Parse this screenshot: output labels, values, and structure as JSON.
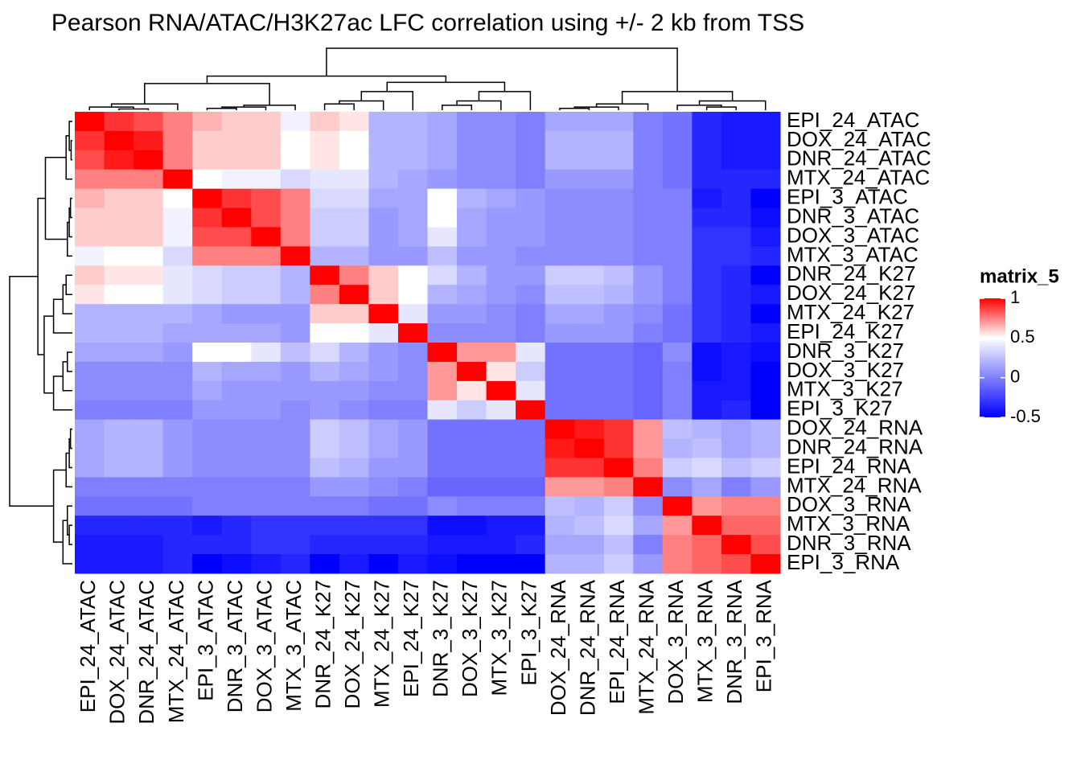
{
  "chart_data": {
    "type": "heatmap",
    "title": "Pearson RNA/ATAC/H3K27ac LFC correlation using +/- 2 kb from TSS",
    "rows": [
      "EPI_24_ATAC",
      "DOX_24_ATAC",
      "DNR_24_ATAC",
      "MTX_24_ATAC",
      "EPI_3_ATAC",
      "DNR_3_ATAC",
      "DOX_3_ATAC",
      "MTX_3_ATAC",
      "DNR_24_K27",
      "DOX_24_K27",
      "MTX_24_K27",
      "EPI_24_K27",
      "DNR_3_K27",
      "DOX_3_K27",
      "MTX_3_K27",
      "EPI_3_K27",
      "DOX_24_RNA",
      "DNR_24_RNA",
      "EPI_24_RNA",
      "MTX_24_RNA",
      "DOX_3_RNA",
      "MTX_3_RNA",
      "DNR_3_RNA",
      "EPI_3_RNA"
    ],
    "columns": [
      "EPI_24_ATAC",
      "DOX_24_ATAC",
      "DNR_24_ATAC",
      "MTX_24_ATAC",
      "EPI_3_ATAC",
      "DNR_3_ATAC",
      "DOX_3_ATAC",
      "MTX_3_ATAC",
      "DNR_24_K27",
      "DOX_24_K27",
      "MTX_24_K27",
      "EPI_24_K27",
      "DNR_3_K27",
      "DOX_3_K27",
      "MTX_3_K27",
      "EPI_3_K27",
      "DOX_24_RNA",
      "DNR_24_RNA",
      "EPI_24_RNA",
      "MTX_24_RNA",
      "DOX_3_RNA",
      "MTX_3_RNA",
      "DNR_3_RNA",
      "EPI_3_RNA"
    ],
    "values": [
      [
        1,
        0.9,
        0.85,
        0.75,
        0.65,
        0.6,
        0.6,
        0.45,
        0.6,
        0.55,
        0.2,
        0.2,
        0.15,
        0.05,
        0.05,
        0,
        0.15,
        0.15,
        0.15,
        0,
        -0.05,
        -0.35,
        -0.4,
        -0.4
      ],
      [
        0.9,
        1,
        0.95,
        0.75,
        0.6,
        0.6,
        0.6,
        0.5,
        0.55,
        0.5,
        0.2,
        0.2,
        0.15,
        0.05,
        0.05,
        0,
        0.2,
        0.2,
        0.2,
        0,
        -0.05,
        -0.35,
        -0.4,
        -0.4
      ],
      [
        0.85,
        0.95,
        1,
        0.75,
        0.6,
        0.6,
        0.6,
        0.5,
        0.55,
        0.5,
        0.2,
        0.2,
        0.15,
        0.05,
        0.05,
        0,
        0.2,
        0.2,
        0.2,
        0,
        -0.05,
        -0.35,
        -0.4,
        -0.4
      ],
      [
        0.75,
        0.75,
        0.75,
        1,
        0.5,
        0.45,
        0.45,
        0.35,
        0.4,
        0.4,
        0.2,
        0.15,
        0.1,
        0.05,
        0.05,
        0,
        0.1,
        0.1,
        0.1,
        0,
        -0.05,
        -0.35,
        -0.35,
        -0.35
      ],
      [
        0.65,
        0.6,
        0.6,
        0.5,
        1,
        0.9,
        0.85,
        0.75,
        0.35,
        0.35,
        0.15,
        0.15,
        0.5,
        0.2,
        0.15,
        0.1,
        0.05,
        0.05,
        0.05,
        0,
        0,
        -0.4,
        -0.35,
        -0.5
      ],
      [
        0.6,
        0.6,
        0.6,
        0.45,
        0.9,
        1,
        0.85,
        0.75,
        0.3,
        0.3,
        0.1,
        0.15,
        0.5,
        0.15,
        0.1,
        0.1,
        0.05,
        0.05,
        0.05,
        0,
        0,
        -0.35,
        -0.35,
        -0.45
      ],
      [
        0.6,
        0.6,
        0.6,
        0.45,
        0.85,
        0.85,
        1,
        0.75,
        0.3,
        0.3,
        0.1,
        0.15,
        0.4,
        0.15,
        0.1,
        0.1,
        0.05,
        0.05,
        0.05,
        0,
        0,
        -0.3,
        -0.3,
        -0.4
      ],
      [
        0.45,
        0.5,
        0.5,
        0.35,
        0.75,
        0.75,
        0.75,
        1,
        0.2,
        0.2,
        0.1,
        0.1,
        0.25,
        0.1,
        0.1,
        0.05,
        0.05,
        0.05,
        0.05,
        0,
        0,
        -0.3,
        -0.3,
        -0.35
      ],
      [
        0.6,
        0.55,
        0.55,
        0.4,
        0.35,
        0.3,
        0.3,
        0.2,
        1,
        0.75,
        0.6,
        0.5,
        0.35,
        0.2,
        0.1,
        0.1,
        0.3,
        0.3,
        0.25,
        0.1,
        0,
        -0.3,
        -0.35,
        -0.5
      ],
      [
        0.55,
        0.5,
        0.5,
        0.4,
        0.35,
        0.3,
        0.3,
        0.2,
        0.75,
        1,
        0.6,
        0.5,
        0.2,
        0.15,
        0.1,
        0.05,
        0.25,
        0.25,
        0.2,
        0.1,
        0,
        -0.3,
        -0.35,
        -0.4
      ],
      [
        0.2,
        0.2,
        0.2,
        0.2,
        0.15,
        0.1,
        0.1,
        0.1,
        0.6,
        0.6,
        1,
        0.4,
        0.1,
        0.1,
        0.05,
        0,
        0.15,
        0.15,
        0.1,
        0.05,
        -0.05,
        -0.3,
        -0.35,
        -0.5
      ],
      [
        0.2,
        0.2,
        0.2,
        0.15,
        0.15,
        0.15,
        0.15,
        0.1,
        0.5,
        0.5,
        0.4,
        1,
        0.05,
        0.05,
        0.05,
        0,
        0.1,
        0.1,
        0.1,
        0,
        -0.05,
        -0.3,
        -0.35,
        -0.4
      ],
      [
        0.15,
        0.15,
        0.15,
        0.1,
        0.5,
        0.5,
        0.4,
        0.25,
        0.35,
        0.2,
        0.1,
        0.05,
        1,
        0.7,
        0.7,
        0.4,
        -0.05,
        -0.05,
        -0.05,
        -0.1,
        0.05,
        -0.45,
        -0.4,
        -0.45
      ],
      [
        0.05,
        0.05,
        0.05,
        0.05,
        0.2,
        0.15,
        0.15,
        0.1,
        0.2,
        0.15,
        0.1,
        0.05,
        0.7,
        1,
        0.55,
        0.3,
        -0.05,
        -0.05,
        -0.05,
        -0.1,
        0,
        -0.45,
        -0.4,
        -0.5
      ],
      [
        0.05,
        0.05,
        0.05,
        0.05,
        0.15,
        0.1,
        0.1,
        0.1,
        0.1,
        0.1,
        0.05,
        0.05,
        0.7,
        0.55,
        1,
        0.4,
        -0.05,
        -0.05,
        -0.05,
        -0.1,
        0,
        -0.4,
        -0.4,
        -0.5
      ],
      [
        0,
        0,
        0,
        0,
        0.1,
        0.1,
        0.1,
        0.05,
        0.1,
        0.05,
        0,
        0,
        0.4,
        0.3,
        0.4,
        1,
        -0.05,
        -0.05,
        -0.05,
        -0.1,
        0,
        -0.4,
        -0.35,
        -0.5
      ],
      [
        0.15,
        0.2,
        0.2,
        0.1,
        0.05,
        0.05,
        0.05,
        0.05,
        0.3,
        0.25,
        0.15,
        0.1,
        -0.05,
        -0.05,
        -0.05,
        -0.05,
        1,
        0.95,
        0.9,
        0.7,
        0.25,
        0.2,
        0.15,
        0.2
      ],
      [
        0.15,
        0.2,
        0.2,
        0.1,
        0.05,
        0.05,
        0.05,
        0.05,
        0.3,
        0.25,
        0.15,
        0.1,
        -0.05,
        -0.05,
        -0.05,
        -0.05,
        0.95,
        1,
        0.9,
        0.7,
        0.2,
        0.25,
        0.15,
        0.2
      ],
      [
        0.15,
        0.2,
        0.2,
        0.1,
        0.05,
        0.05,
        0.05,
        0.05,
        0.25,
        0.2,
        0.1,
        0.1,
        -0.05,
        -0.05,
        -0.05,
        -0.05,
        0.9,
        0.9,
        1,
        0.75,
        0.3,
        0.35,
        0.25,
        0.3
      ],
      [
        0,
        0,
        0,
        0,
        0,
        0,
        0,
        0,
        0.1,
        0.1,
        0.05,
        0,
        -0.1,
        -0.1,
        -0.1,
        -0.1,
        0.7,
        0.7,
        0.75,
        1,
        0.05,
        0.15,
        0,
        0.1
      ],
      [
        -0.05,
        -0.05,
        -0.05,
        -0.05,
        0,
        0,
        0,
        0,
        0,
        0,
        -0.05,
        -0.05,
        0.05,
        0,
        0,
        0,
        0.25,
        0.2,
        0.3,
        0.05,
        1,
        0.7,
        0.75,
        0.75
      ],
      [
        -0.35,
        -0.35,
        -0.35,
        -0.35,
        -0.4,
        -0.35,
        -0.3,
        -0.3,
        -0.3,
        -0.3,
        -0.3,
        -0.3,
        -0.45,
        -0.45,
        -0.4,
        -0.4,
        0.2,
        0.25,
        0.35,
        0.15,
        0.7,
        1,
        0.8,
        0.8
      ],
      [
        -0.4,
        -0.4,
        -0.4,
        -0.35,
        -0.35,
        -0.35,
        -0.3,
        -0.3,
        -0.35,
        -0.35,
        -0.35,
        -0.35,
        -0.4,
        -0.4,
        -0.4,
        -0.35,
        0.15,
        0.15,
        0.25,
        0,
        0.75,
        0.8,
        1,
        0.85
      ],
      [
        -0.4,
        -0.4,
        -0.4,
        -0.35,
        -0.5,
        -0.45,
        -0.4,
        -0.35,
        -0.5,
        -0.4,
        -0.5,
        -0.4,
        -0.45,
        -0.5,
        -0.5,
        -0.5,
        0.2,
        0.2,
        0.3,
        0.1,
        0.75,
        0.8,
        0.85,
        1
      ]
    ],
    "color_stops": [
      {
        "value": -0.5,
        "color": "#0000FF"
      },
      {
        "value": 0.5,
        "color": "#FFFFFF"
      },
      {
        "value": 1,
        "color": "#FF0000"
      }
    ],
    "legend_title": "matrix_5",
    "legend_ticks": [
      -0.5,
      0,
      0.5,
      1
    ]
  }
}
